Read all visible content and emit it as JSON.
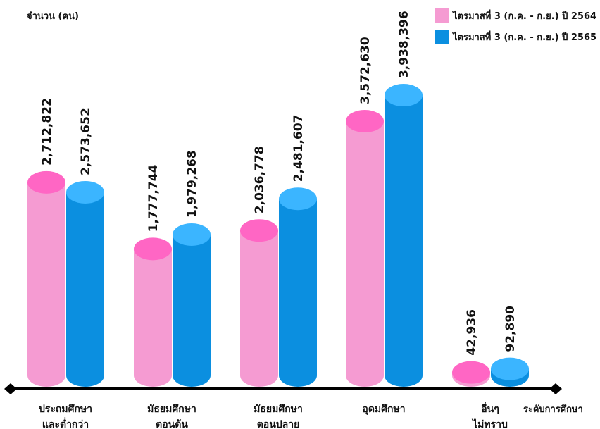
{
  "chart_data": {
    "type": "bar",
    "ylabel": "จำนวน (คน)",
    "xlabel": "ระดับการศึกษา",
    "categories": [
      [
        "ประถมศึกษา",
        "และต่ำกว่า"
      ],
      [
        "มัธยมศึกษา",
        "ตอนต้น"
      ],
      [
        "มัธยมศึกษา",
        "ตอนปลาย"
      ],
      [
        "อุดมศึกษา"
      ],
      [
        "อื่นๆ",
        "ไม่ทราบ"
      ]
    ],
    "series": [
      {
        "name": "ไตรมาสที่ 3 (ก.ค. - ก.ย.) ปี 2564",
        "values": [
          2712822,
          1777744,
          2036778,
          3572630,
          42936
        ],
        "labels": [
          "2,712,822",
          "1,777,744",
          "2,036,778",
          "3,572,630",
          "42,936"
        ],
        "color": "#f59bd2",
        "cap_color": "#ff66c4"
      },
      {
        "name": "ไตรมาสที่ 3 (ก.ค. - ก.ย.) ปี 2565",
        "values": [
          2573652,
          1979268,
          2481607,
          3938396,
          92890
        ],
        "labels": [
          "2,573,652",
          "1,979,268",
          "2,481,607",
          "3,938,396",
          "92,890"
        ],
        "color": "#0b8fe0",
        "cap_color": "#3bb5ff"
      }
    ],
    "grid": false,
    "legend": "top-right"
  }
}
